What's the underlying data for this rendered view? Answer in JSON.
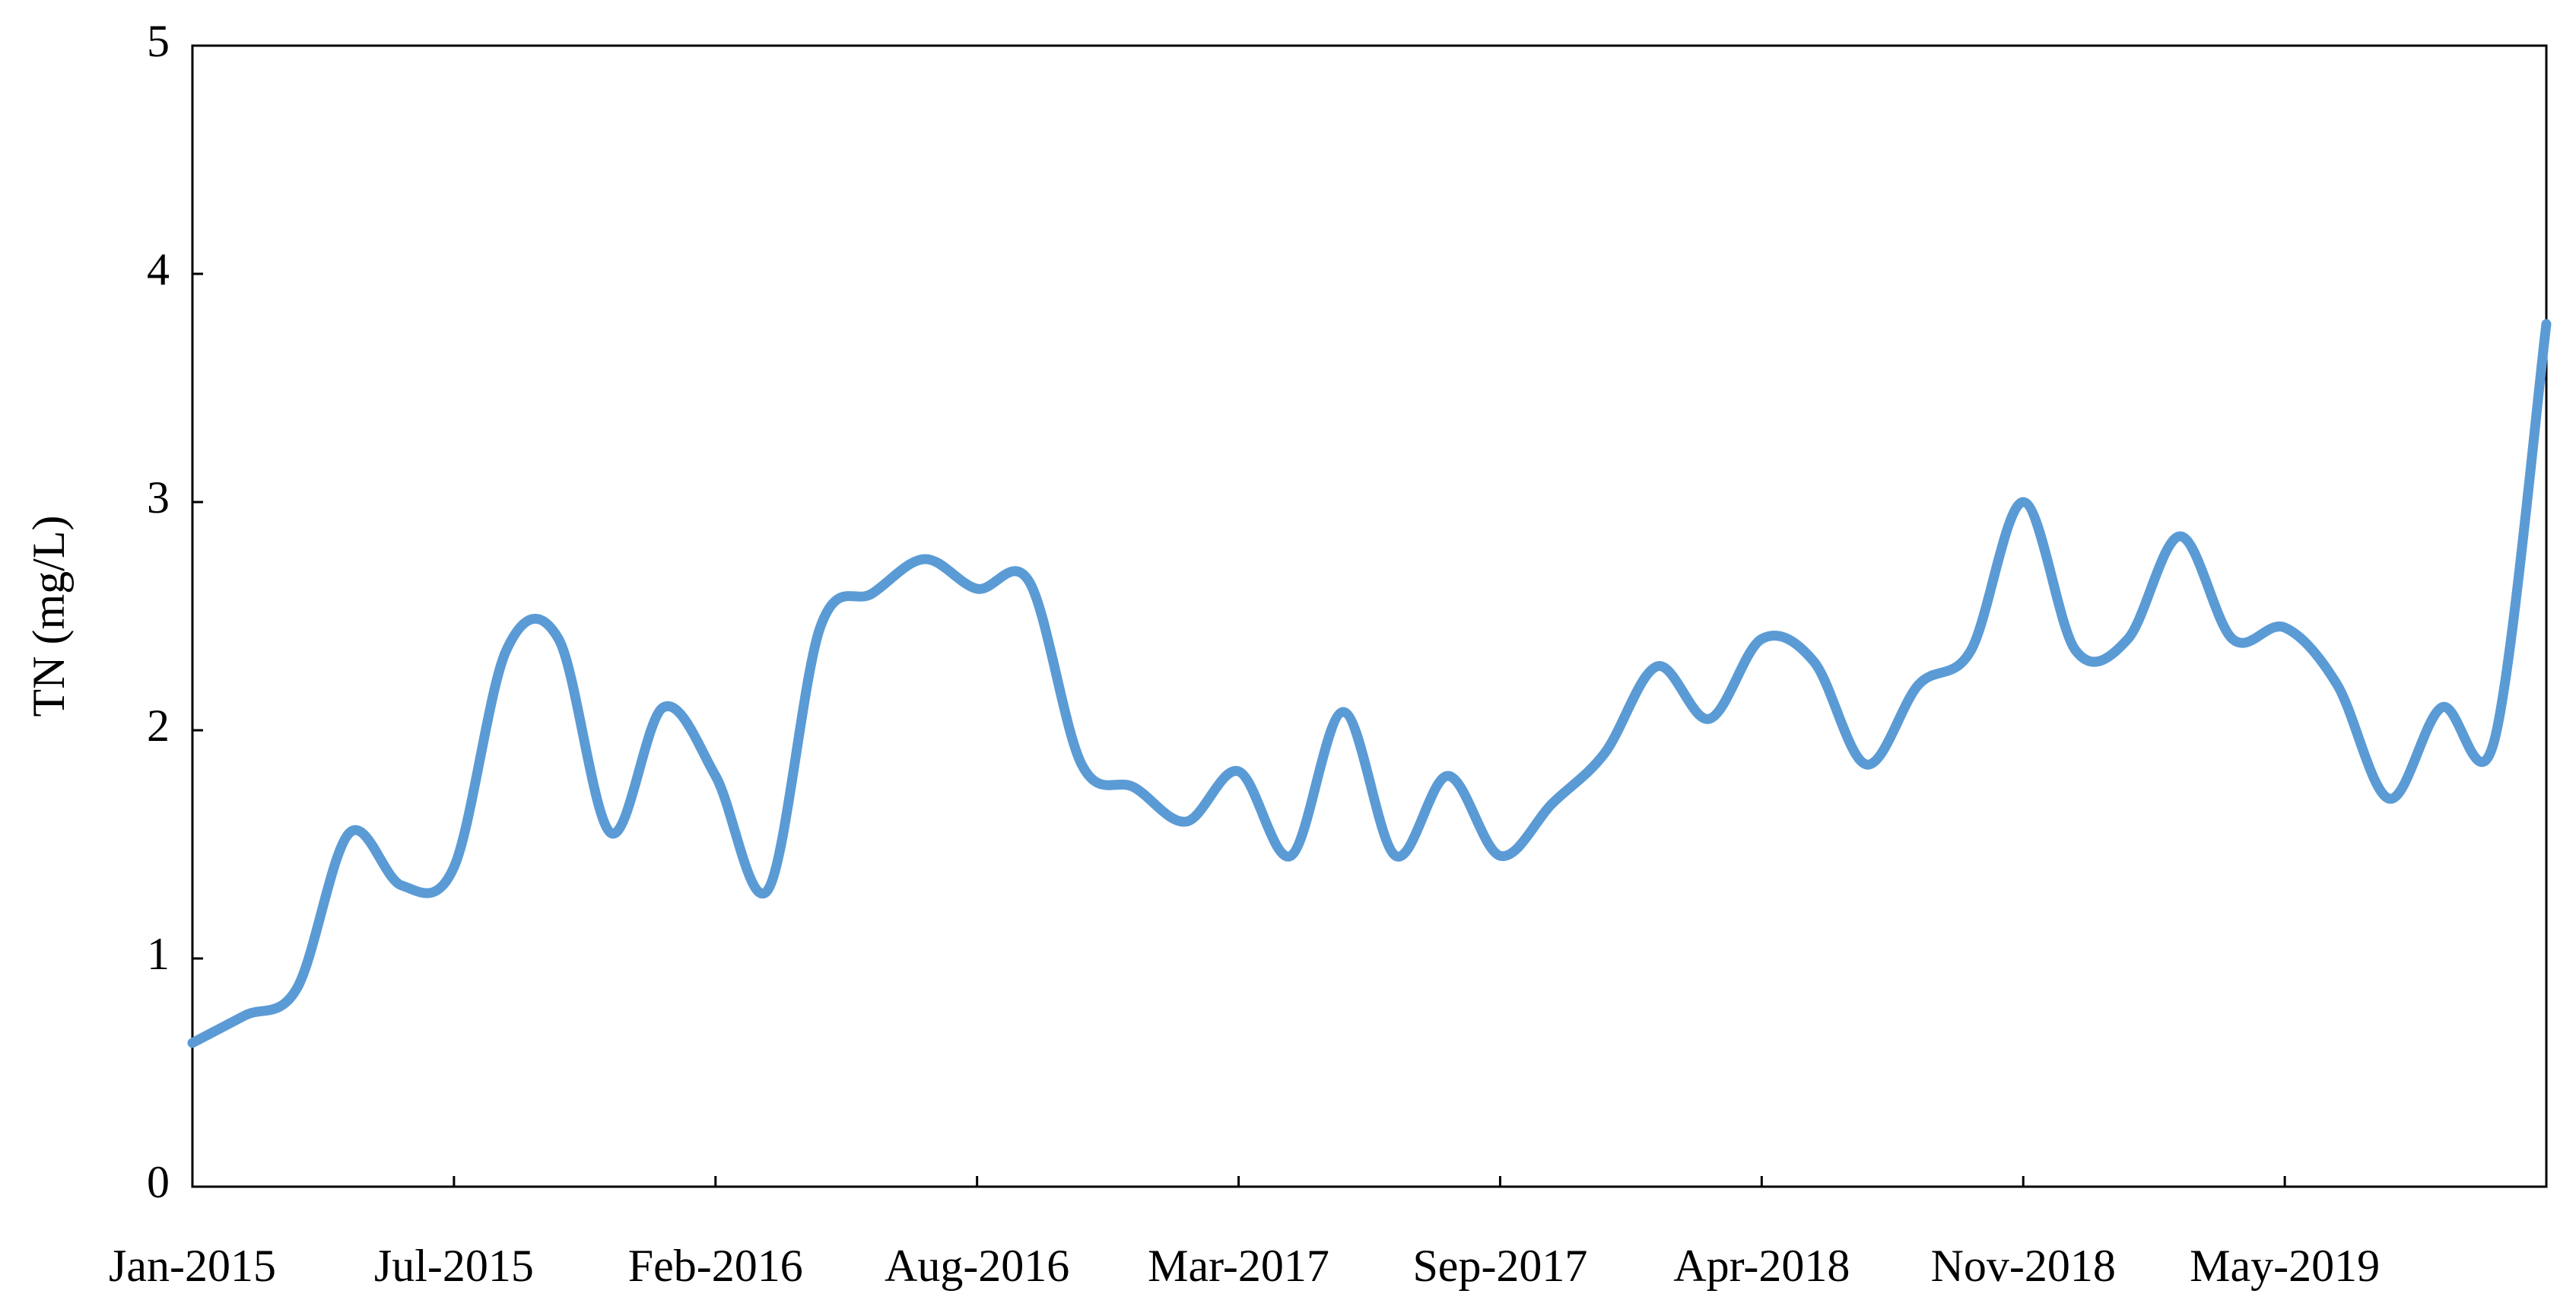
{
  "chart_data": {
    "type": "line",
    "y_label": "TN (mg/L)",
    "categories": [
      "Jan-2015",
      null,
      null,
      null,
      null,
      "Jul-2015",
      null,
      null,
      null,
      null,
      "Feb-2016",
      null,
      null,
      null,
      null,
      "Aug-2016",
      null,
      null,
      null,
      null,
      "Mar-2017",
      null,
      null,
      null,
      null,
      "Sep-2017",
      null,
      null,
      null,
      null,
      "Apr-2018",
      null,
      null,
      null,
      null,
      "Nov-2018",
      null,
      null,
      null,
      null,
      "May-2019",
      null,
      null,
      null,
      null,
      null
    ],
    "series": [
      {
        "name": "TN",
        "color": "#5b9bd5",
        "values": [
          0.63,
          0.75,
          0.87,
          1.55,
          1.32,
          1.4,
          2.35,
          2.4,
          1.55,
          2.1,
          1.8,
          1.3,
          2.45,
          2.6,
          2.75,
          2.62,
          2.65,
          1.85,
          1.75,
          1.6,
          1.82,
          1.45,
          2.08,
          1.45,
          1.8,
          1.45,
          1.68,
          1.9,
          2.28,
          2.05,
          2.4,
          2.3,
          1.85,
          2.2,
          2.35,
          3.0,
          2.35,
          2.4,
          2.85,
          2.4,
          2.45,
          2.2,
          1.7,
          2.1,
          1.95,
          3.78
        ]
      }
    ],
    "ylim": [
      0,
      5
    ],
    "yticks": [
      0,
      1,
      2,
      3,
      4,
      5
    ]
  }
}
